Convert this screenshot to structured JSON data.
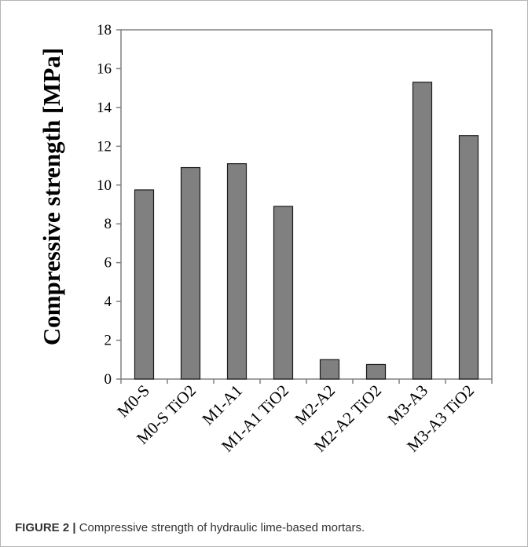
{
  "chart_data": {
    "type": "bar",
    "title": "",
    "xlabel": "",
    "ylabel": "Compressive  strength  [MPa]",
    "ylim": [
      0,
      18
    ],
    "yticks": [
      0,
      2,
      4,
      6,
      8,
      10,
      12,
      14,
      16,
      18
    ],
    "grid": false,
    "legend": "none",
    "bar_color": "#808080",
    "categories": [
      "M0-S",
      "M0-S TiO2",
      "M1-A1",
      "M1-A1 TiO2",
      "M2-A2",
      "M2-A2 TiO2",
      "M3-A3",
      "M3-A3 TiO2"
    ],
    "values": [
      9.75,
      10.9,
      11.1,
      8.9,
      1.0,
      0.75,
      15.3,
      12.55
    ]
  },
  "caption": {
    "label": "FIGURE 2 |",
    "text": " Compressive strength of hydraulic lime-based mortars."
  }
}
